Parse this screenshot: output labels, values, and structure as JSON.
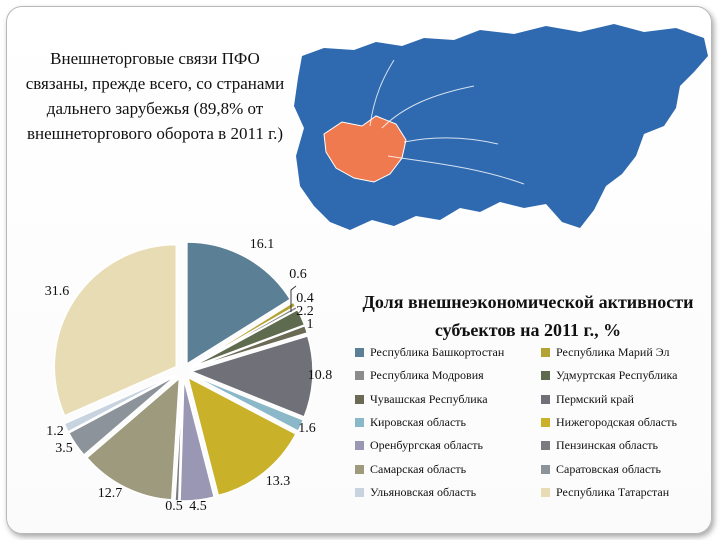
{
  "intro_text": "Внешнеторговые связи ПФО связаны, прежде всего, со странами дальнего зарубежья (89,8% от внешнеторгового оборота в 2011 г.)",
  "map": {
    "russia_color": "#2f6ab0",
    "pfo_color": "#f07a50"
  },
  "chart_data": {
    "type": "pie",
    "title": "Доля внешнеэкономической активности субъектов на 2011 г., %",
    "legend_position": "right",
    "categories": [
      "Республика Башкортостан",
      "Республика  Марий Эл",
      "Республика Модровия",
      "Удмуртская Республика",
      "Чувашская Республика",
      "Пермский край",
      "Кировская область",
      "Нижегородская область",
      "Оренбургская область",
      "Пензинская область",
      "Самарская область",
      "Саратовская область",
      "Ульяновская область",
      "Республика Татарстан"
    ],
    "values": [
      16.1,
      0.6,
      0.4,
      2.2,
      1,
      10.8,
      1.6,
      13.3,
      4.5,
      0.5,
      12.7,
      3.5,
      1.2,
      31.6
    ],
    "value_labels": [
      "16.1",
      "0.6",
      "0.4",
      "2.2",
      "1",
      "10.8",
      "1.6",
      "13.3",
      "4.5",
      "0.5",
      "12.7",
      "3.5",
      "1.2",
      "31.6"
    ],
    "colors": [
      "#5b7f95",
      "#b3a334",
      "#8b8b8b",
      "#5f6b4e",
      "#6b6a55",
      "#707078",
      "#8bb8c8",
      "#c9b12a",
      "#9a97b4",
      "#7a7a80",
      "#9e9a7e",
      "#8c939a",
      "#c7d4df",
      "#e8dcb4"
    ]
  }
}
